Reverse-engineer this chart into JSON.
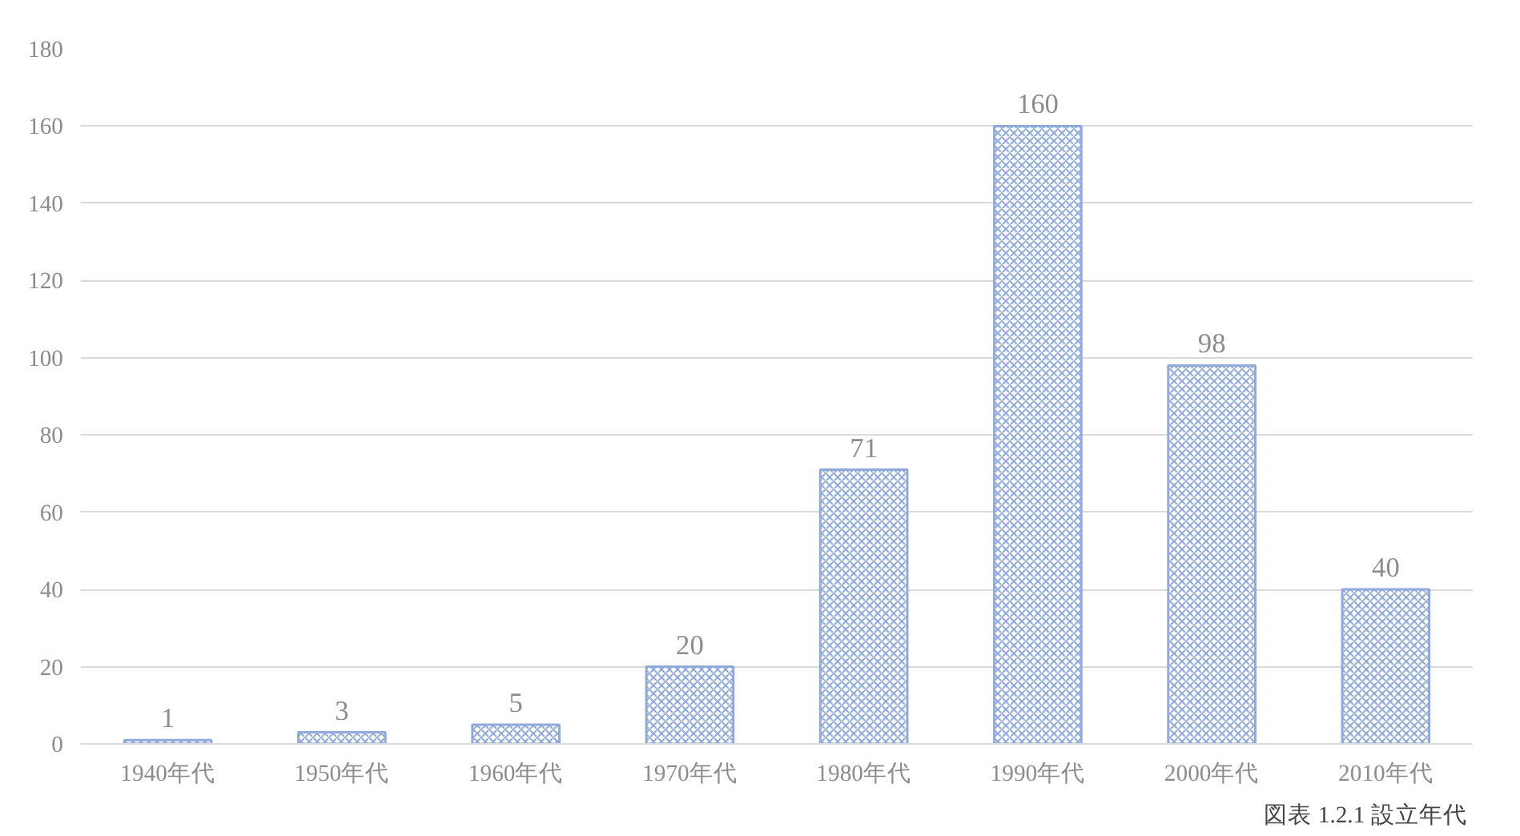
{
  "chart_data": {
    "type": "bar",
    "categories": [
      "1940年代",
      "1950年代",
      "1960年代",
      "1970年代",
      "1980年代",
      "1990年代",
      "2000年代",
      "2010年代"
    ],
    "values": [
      1,
      3,
      5,
      20,
      71,
      160,
      98,
      40
    ],
    "color": "#8faadc",
    "ylim": [
      0,
      180
    ],
    "yticks": [
      0,
      20,
      40,
      60,
      80,
      100,
      120,
      140,
      160,
      180
    ],
    "grid": "y",
    "data_labels": true,
    "annotations": [
      "図表 1.2.1  設立年代"
    ]
  }
}
